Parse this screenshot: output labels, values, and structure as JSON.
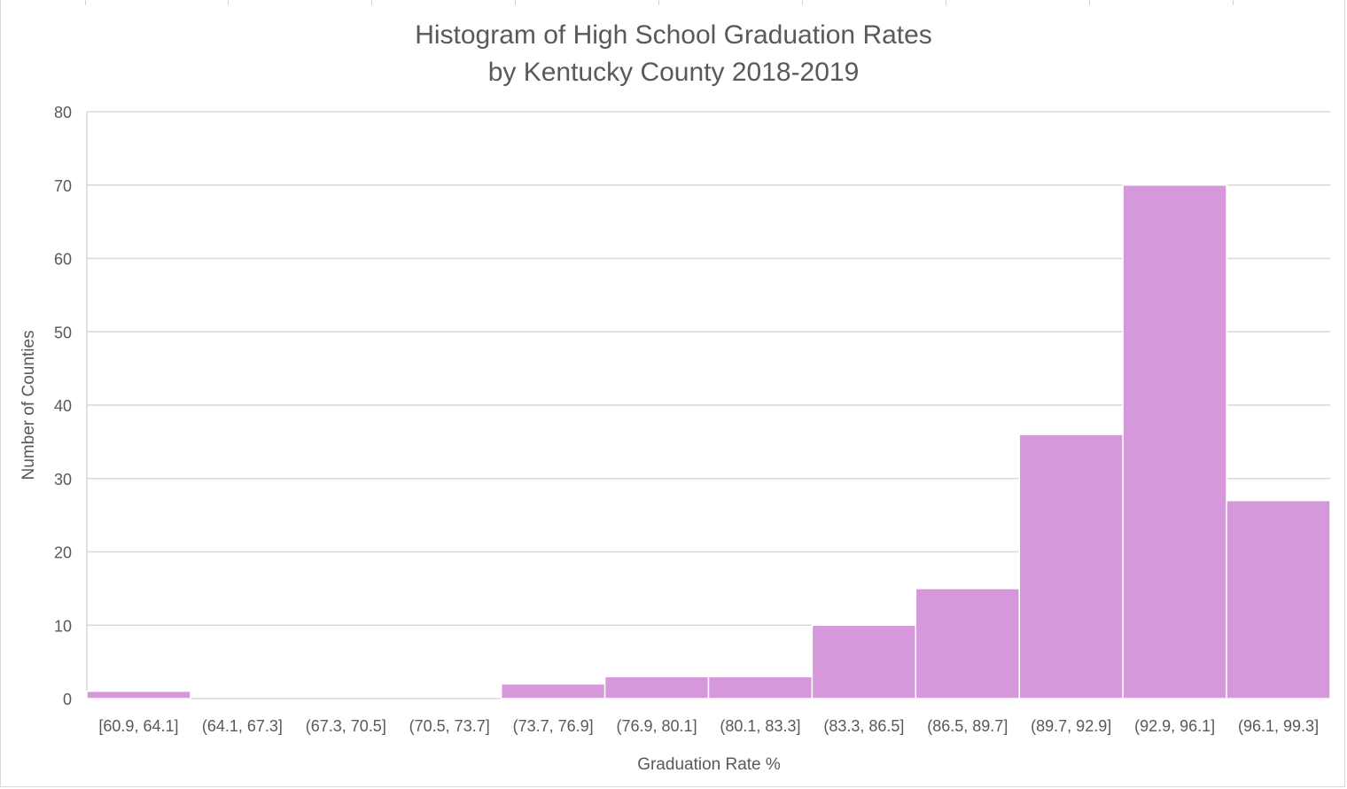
{
  "chart_data": {
    "type": "bar",
    "title": "Histogram of High School Graduation Rates",
    "subtitle": "by Kentucky County 2018-2019",
    "xlabel": "Graduation Rate %",
    "ylabel": "Number of Counties",
    "categories": [
      "[60.9, 64.1]",
      "(64.1, 67.3]",
      "(67.3, 70.5]",
      "(70.5, 73.7]",
      "(73.7, 76.9]",
      "(76.9, 80.1]",
      "(80.1, 83.3]",
      "(83.3, 86.5]",
      "(86.5, 89.7]",
      "(89.7, 92.9]",
      "(92.9, 96.1]",
      "(96.1, 99.3]"
    ],
    "values": [
      1,
      0,
      0,
      0,
      2,
      3,
      3,
      10,
      15,
      36,
      70,
      27
    ],
    "ylim": [
      0,
      80
    ],
    "yticks": [
      0,
      10,
      20,
      30,
      40,
      50,
      60,
      70,
      80
    ],
    "grid": true,
    "colors": {
      "bar": "#d498db",
      "bar_edge": "#ffffff",
      "grid": "#d9d9d9",
      "text": "#595959"
    }
  }
}
